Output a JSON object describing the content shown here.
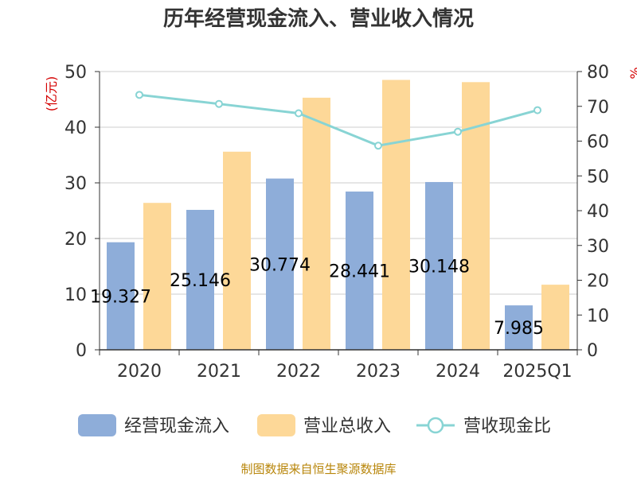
{
  "chart_data": {
    "type": "bar",
    "title": "历年经营现金流入、营业收入情况",
    "categories": [
      "2020",
      "2021",
      "2022",
      "2023",
      "2024",
      "2025Q1"
    ],
    "left_axis": {
      "unit": "(亿元)",
      "ylim": [
        0,
        50
      ],
      "ticks": [
        "0",
        "10",
        "20",
        "30",
        "40",
        "50"
      ]
    },
    "right_axis": {
      "unit": "%",
      "ylim": [
        0,
        80
      ],
      "ticks": [
        "0",
        "10",
        "20",
        "30",
        "40",
        "50",
        "60",
        "70",
        "80"
      ]
    },
    "series": [
      {
        "name": "经营现金流入",
        "type": "bar",
        "axis": "left",
        "color": "#8eadd9",
        "values": [
          19.327,
          25.146,
          30.774,
          28.441,
          30.148,
          7.985
        ],
        "labels": [
          "19.327",
          "25.146",
          "30.774",
          "28.441",
          "30.148",
          "7.985"
        ]
      },
      {
        "name": "营业总收入",
        "type": "bar",
        "axis": "left",
        "color": "#fdd898",
        "values": [
          26.4,
          35.6,
          45.3,
          48.5,
          48.1,
          11.7
        ]
      },
      {
        "name": "营收现金比",
        "type": "line",
        "axis": "right",
        "color": "#88d4d4",
        "values": [
          73.3,
          70.7,
          68.0,
          58.7,
          62.7,
          68.9
        ]
      }
    ],
    "grid": true,
    "legend_position": "bottom"
  },
  "source": "制图数据来自恒生聚源数据库"
}
